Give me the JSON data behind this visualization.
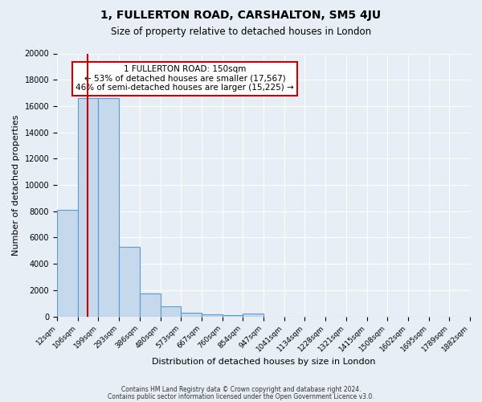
{
  "title": "1, FULLERTON ROAD, CARSHALTON, SM5 4JU",
  "subtitle": "Size of property relative to detached houses in London",
  "xlabel": "Distribution of detached houses by size in London",
  "ylabel": "Number of detached properties",
  "bar_values": [
    8100,
    16600,
    16600,
    5300,
    1750,
    750,
    280,
    150,
    100,
    200,
    0,
    0,
    0,
    0,
    0,
    0,
    0,
    0,
    0,
    0
  ],
  "categories": [
    "12sqm",
    "106sqm",
    "199sqm",
    "293sqm",
    "386sqm",
    "480sqm",
    "573sqm",
    "667sqm",
    "760sqm",
    "854sqm",
    "947sqm",
    "1041sqm",
    "1134sqm",
    "1228sqm",
    "1321sqm",
    "1415sqm",
    "1508sqm",
    "1602sqm",
    "1695sqm",
    "1789sqm",
    "1882sqm"
  ],
  "bar_color": "#c5d8ec",
  "bar_edge_color": "#5b9bd5",
  "property_label": "1 FULLERTON ROAD: 150sqm",
  "pct_smaller": "53%",
  "n_smaller": "17,567",
  "pct_larger": "46%",
  "n_larger": "15,225",
  "line_color": "#cc0000",
  "box_edge_color": "#cc0000",
  "ylim": [
    0,
    20000
  ],
  "yticks": [
    0,
    2000,
    4000,
    6000,
    8000,
    10000,
    12000,
    14000,
    16000,
    18000,
    20000
  ],
  "bg_color": "#e8eef5",
  "plot_bg_color": "#e8eef5",
  "footer_line1": "Contains HM Land Registry data © Crown copyright and database right 2024.",
  "footer_line2": "Contains public sector information licensed under the Open Government Licence v3.0."
}
